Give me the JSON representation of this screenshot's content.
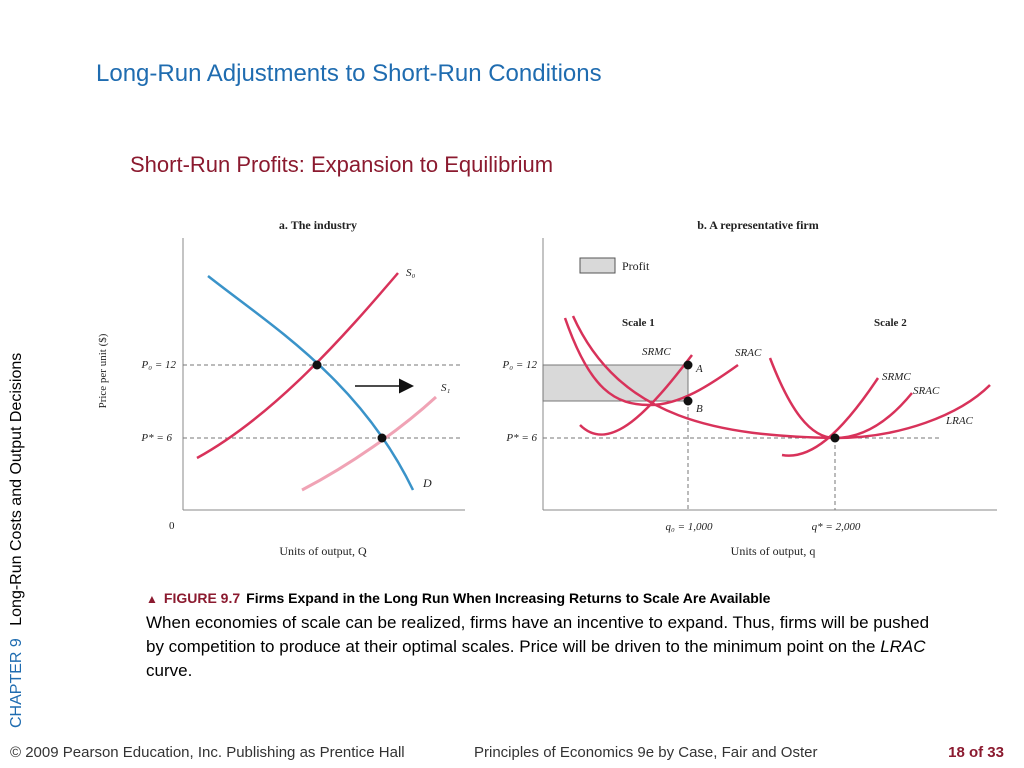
{
  "slide": {
    "title": "Long-Run Adjustments to Short-Run Conditions",
    "subtitle": "Short-Run Profits: Expansion to Equilibrium"
  },
  "sidebar": {
    "chapter": "CHAPTER 9",
    "chapter_title": "Long-Run Costs and Output Decisions"
  },
  "figure": {
    "panel_a": {
      "title": "a. The industry",
      "y_axis_label": "Price per unit ($)",
      "x_axis_label": "Units of output, Q",
      "origin_label": "0",
      "p0_label": "P₀ = 12",
      "pstar_label": "P* = 6",
      "s0_label": "S₀",
      "s1_label": "S₁",
      "d_label": "D"
    },
    "panel_b": {
      "title": "b. A representative firm",
      "legend_profit": "Profit",
      "scale1_label": "Scale 1",
      "scale2_label": "Scale 2",
      "srmc1_label": "SRMC",
      "srac1_label": "SRAC",
      "srmc2_label": "SRMC",
      "srac2_label": "SRAC",
      "lrac_label": "LRAC",
      "point_a": "A",
      "point_b": "B",
      "p0_label": "P₀ = 12",
      "pstar_label": "P* = 6",
      "q0_label": "q₀ = 1,000",
      "qstar_label": "q* = 2,000",
      "x_axis_label": "Units of output, q"
    },
    "colors": {
      "supply": "#d8325a",
      "supply_new": "#f0a3b5",
      "demand": "#3a93c9",
      "profit_fill": "#d9d9d9"
    }
  },
  "caption": {
    "figure_number": "FIGURE 9.7",
    "figure_title": "Firms Expand in the Long Run When Increasing Returns to Scale Are Available",
    "body_part1": "When economies of scale can be realized, firms have an incentive to expand. Thus, firms will be pushed by competition to produce at their optimal scales. Price will be driven to the minimum point on the ",
    "body_italic": "LRAC",
    "body_part2": " curve."
  },
  "footer": {
    "copyright": "© 2009 Pearson Education, Inc. Publishing as Prentice Hall",
    "book": "Principles of Economics 9e by Case, Fair and Oster",
    "page": "18 of 33"
  }
}
